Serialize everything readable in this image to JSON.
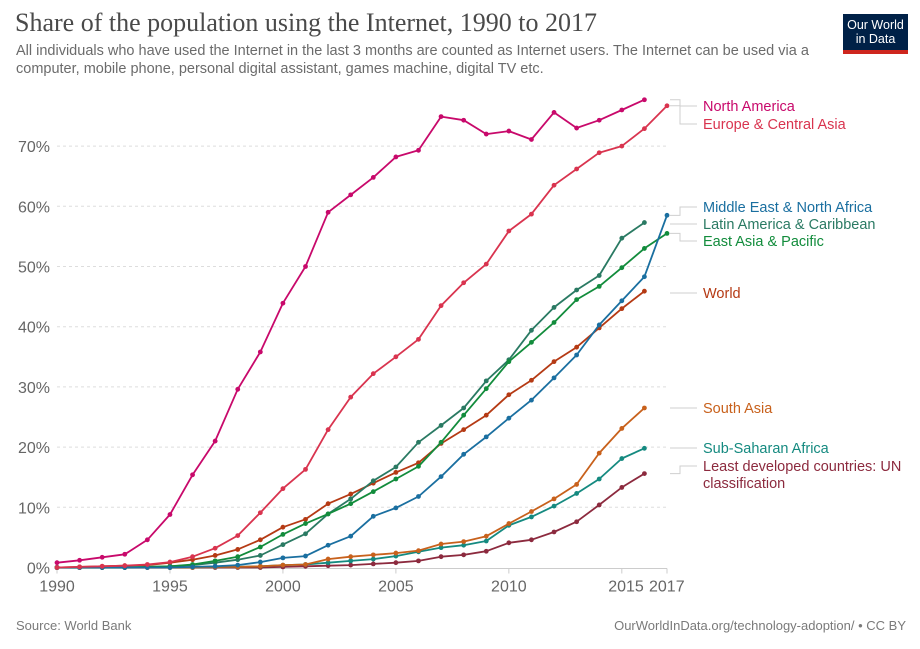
{
  "header": {
    "title": "Share of the population using the Internet, 1990 to 2017",
    "subtitle": "All individuals who have used the Internet in the last 3 months are counted as Internet users. The Internet can be used via a computer, mobile phone, personal digital assistant, games machine, digital TV etc.",
    "logo_line1": "Our World",
    "logo_line2": "in Data"
  },
  "footer": {
    "source": "Source: World Bank",
    "license": "OurWorldInData.org/technology-adoption/ • CC BY"
  },
  "chart_data": {
    "type": "line",
    "title": "Share of the population using the Internet, 1990 to 2017",
    "xlabel": "",
    "ylabel": "",
    "xlim": [
      1990,
      2017
    ],
    "ylim": [
      0,
      78
    ],
    "x_ticks": [
      1990,
      1995,
      2000,
      2005,
      2010,
      2015,
      2017
    ],
    "x_tick_labels": [
      "1990",
      "1995",
      "2000",
      "2005",
      "2010",
      "2015",
      "2017"
    ],
    "y_ticks": [
      0,
      10,
      20,
      30,
      40,
      50,
      60,
      70
    ],
    "y_tick_labels": [
      "0%",
      "10%",
      "20%",
      "30%",
      "40%",
      "50%",
      "60%",
      "70%"
    ],
    "grid": "horizontal dashed",
    "legend": "right (labels at line ends)",
    "series": [
      {
        "name": "North America",
        "color": "#c8096b",
        "x": [
          1990,
          1991,
          1992,
          1993,
          1994,
          1995,
          1996,
          1997,
          1998,
          1999,
          2000,
          2001,
          2002,
          2003,
          2004,
          2005,
          2006,
          2007,
          2008,
          2009,
          2010,
          2011,
          2012,
          2013,
          2014,
          2015,
          2016
        ],
        "values": [
          0.8,
          1.2,
          1.7,
          2.2,
          4.6,
          8.8,
          15.4,
          21.0,
          29.6,
          35.8,
          43.9,
          50.0,
          59.0,
          61.9,
          64.8,
          68.2,
          69.3,
          74.9,
          74.3,
          72.0,
          72.5,
          71.1,
          75.6,
          73.0,
          74.3,
          76.0,
          77.7
        ]
      },
      {
        "name": "Europe & Central Asia",
        "color": "#d9344f",
        "x": [
          1990,
          1991,
          1992,
          1993,
          1994,
          1995,
          1996,
          1997,
          1998,
          1999,
          2000,
          2001,
          2002,
          2003,
          2004,
          2005,
          2006,
          2007,
          2008,
          2009,
          2010,
          2011,
          2012,
          2013,
          2014,
          2015,
          2016,
          2017
        ],
        "values": [
          0.0,
          0.1,
          0.2,
          0.3,
          0.5,
          0.9,
          1.8,
          3.2,
          5.3,
          9.1,
          13.1,
          16.3,
          22.9,
          28.3,
          32.2,
          35.0,
          37.9,
          43.5,
          47.3,
          50.4,
          55.9,
          58.7,
          63.5,
          66.2,
          68.9,
          70.0,
          72.9,
          76.7
        ]
      },
      {
        "name": "Middle East & North Africa",
        "color": "#1a6fa0",
        "x": [
          1990,
          1991,
          1992,
          1993,
          1994,
          1995,
          1996,
          1997,
          1998,
          1999,
          2000,
          2001,
          2002,
          2003,
          2004,
          2005,
          2006,
          2007,
          2008,
          2009,
          2010,
          2011,
          2012,
          2013,
          2014,
          2015,
          2016,
          2017
        ],
        "values": [
          0.0,
          0.0,
          0.0,
          0.0,
          0.0,
          0.0,
          0.1,
          0.2,
          0.4,
          0.9,
          1.6,
          1.9,
          3.7,
          5.2,
          8.5,
          9.9,
          11.8,
          15.1,
          18.8,
          21.7,
          24.8,
          27.8,
          31.5,
          35.3,
          40.3,
          44.3,
          48.3,
          58.5
        ]
      },
      {
        "name": "Latin America & Caribbean",
        "color": "#2a7a63",
        "x": [
          1990,
          1991,
          1992,
          1993,
          1994,
          1995,
          1996,
          1997,
          1998,
          1999,
          2000,
          2001,
          2002,
          2003,
          2004,
          2005,
          2006,
          2007,
          2008,
          2009,
          2010,
          2011,
          2012,
          2013,
          2014,
          2015,
          2016
        ],
        "values": [
          0.0,
          0.0,
          0.0,
          0.0,
          0.1,
          0.2,
          0.4,
          0.8,
          1.3,
          2.0,
          3.8,
          5.6,
          8.9,
          11.4,
          14.4,
          16.7,
          20.8,
          23.6,
          26.5,
          31.0,
          34.5,
          39.4,
          43.2,
          46.1,
          48.5,
          54.7,
          57.3
        ]
      },
      {
        "name": "East Asia & Pacific",
        "color": "#128c3c",
        "x": [
          1990,
          1991,
          1992,
          1993,
          1994,
          1995,
          1996,
          1997,
          1998,
          1999,
          2000,
          2001,
          2002,
          2003,
          2004,
          2005,
          2006,
          2007,
          2008,
          2009,
          2010,
          2011,
          2012,
          2013,
          2014,
          2015,
          2016,
          2017
        ],
        "values": [
          0.0,
          0.0,
          0.0,
          0.0,
          0.1,
          0.2,
          0.5,
          1.1,
          1.8,
          3.4,
          5.5,
          7.3,
          8.9,
          10.6,
          12.6,
          14.7,
          16.8,
          20.8,
          25.3,
          29.7,
          34.2,
          37.4,
          40.7,
          44.5,
          46.7,
          49.8,
          53.0,
          55.5
        ]
      },
      {
        "name": "World",
        "color": "#b53a14",
        "x": [
          1990,
          1991,
          1992,
          1993,
          1994,
          1995,
          1996,
          1997,
          1998,
          1999,
          2000,
          2001,
          2002,
          2003,
          2004,
          2005,
          2006,
          2007,
          2008,
          2009,
          2010,
          2011,
          2012,
          2013,
          2014,
          2015,
          2016
        ],
        "values": [
          0.0,
          0.1,
          0.2,
          0.3,
          0.4,
          0.8,
          1.3,
          2.0,
          3.0,
          4.6,
          6.7,
          8.0,
          10.6,
          12.2,
          14.0,
          15.8,
          17.4,
          20.6,
          22.9,
          25.3,
          28.7,
          31.1,
          34.2,
          36.6,
          39.8,
          43.0,
          45.9
        ]
      },
      {
        "name": "South Asia",
        "color": "#c8611c",
        "x": [
          1990,
          1991,
          1992,
          1993,
          1994,
          1995,
          1996,
          1997,
          1998,
          1999,
          2000,
          2001,
          2002,
          2003,
          2004,
          2005,
          2006,
          2007,
          2008,
          2009,
          2010,
          2011,
          2012,
          2013,
          2014,
          2015,
          2016
        ],
        "values": [
          0.0,
          0.0,
          0.0,
          0.0,
          0.0,
          0.0,
          0.0,
          0.1,
          0.1,
          0.2,
          0.4,
          0.5,
          1.4,
          1.8,
          2.1,
          2.4,
          2.8,
          3.9,
          4.3,
          5.2,
          7.3,
          9.3,
          11.4,
          13.8,
          19.0,
          23.1,
          26.5
        ]
      },
      {
        "name": "Sub-Saharan Africa",
        "color": "#158a80",
        "x": [
          1990,
          1991,
          1992,
          1993,
          1994,
          1995,
          1996,
          1997,
          1998,
          1999,
          2000,
          2001,
          2002,
          2003,
          2004,
          2005,
          2006,
          2007,
          2008,
          2009,
          2010,
          2011,
          2012,
          2013,
          2014,
          2015,
          2016
        ],
        "values": [
          0.0,
          0.0,
          0.0,
          0.0,
          0.0,
          0.0,
          0.0,
          0.1,
          0.1,
          0.2,
          0.4,
          0.5,
          0.8,
          1.1,
          1.4,
          1.9,
          2.6,
          3.3,
          3.7,
          4.4,
          7.0,
          8.4,
          10.2,
          12.3,
          14.7,
          18.1,
          19.8
        ]
      },
      {
        "name": "Least developed countries: UN classification",
        "color": "#8c2a3e",
        "x": [
          1990,
          1991,
          1992,
          1993,
          1994,
          1995,
          1996,
          1997,
          1998,
          1999,
          2000,
          2001,
          2002,
          2003,
          2004,
          2005,
          2006,
          2007,
          2008,
          2009,
          2010,
          2011,
          2012,
          2013,
          2014,
          2015,
          2016
        ],
        "values": [
          0.0,
          0.0,
          0.0,
          0.0,
          0.0,
          0.0,
          0.0,
          0.0,
          0.0,
          0.0,
          0.1,
          0.2,
          0.3,
          0.4,
          0.6,
          0.8,
          1.1,
          1.8,
          2.1,
          2.7,
          4.1,
          4.6,
          5.9,
          7.6,
          10.4,
          13.3,
          15.6
        ]
      }
    ],
    "legend_labels": [
      {
        "series": 0,
        "lines": [
          "North America"
        ]
      },
      {
        "series": 1,
        "lines": [
          "Europe & Central Asia"
        ]
      },
      {
        "series": 2,
        "lines": [
          "Middle East & North Africa"
        ]
      },
      {
        "series": 3,
        "lines": [
          "Latin America & Caribbean"
        ]
      },
      {
        "series": 4,
        "lines": [
          "East Asia & Pacific"
        ]
      },
      {
        "series": 5,
        "lines": [
          "World"
        ]
      },
      {
        "series": 6,
        "lines": [
          "South Asia"
        ]
      },
      {
        "series": 7,
        "lines": [
          "Sub-Saharan Africa"
        ]
      },
      {
        "series": 8,
        "lines": [
          "Least developed countries: UN",
          "classification"
        ]
      }
    ]
  }
}
